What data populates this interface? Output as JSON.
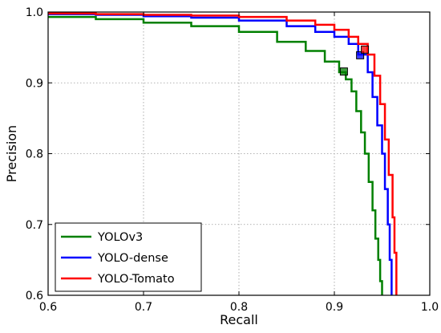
{
  "chart_data": {
    "type": "line",
    "title": "",
    "xlabel": "Recall",
    "ylabel": "Precision",
    "xlim": [
      0.6,
      1.0
    ],
    "ylim": [
      0.6,
      1.0
    ],
    "xticks": [
      "0.6",
      "0.7",
      "0.8",
      "0.9",
      "1.0"
    ],
    "yticks": [
      "0.6",
      "0.7",
      "0.8",
      "0.9",
      "1.0"
    ],
    "grid": true,
    "legend_position": "bottom-left",
    "series": [
      {
        "name": "YOLOv3",
        "color": "#008000",
        "x": [
          0.6,
          0.65,
          0.7,
          0.75,
          0.8,
          0.84,
          0.87,
          0.89,
          0.905,
          0.912,
          0.918,
          0.923,
          0.928,
          0.932,
          0.936,
          0.94,
          0.943,
          0.946,
          0.948,
          0.95
        ],
        "y": [
          0.993,
          0.99,
          0.985,
          0.98,
          0.972,
          0.958,
          0.945,
          0.93,
          0.915,
          0.905,
          0.888,
          0.86,
          0.83,
          0.8,
          0.76,
          0.72,
          0.68,
          0.65,
          0.62,
          0.6
        ],
        "marker": {
          "x": 0.91,
          "y": 0.916
        }
      },
      {
        "name": "YOLO-dense",
        "color": "#0000ff",
        "x": [
          0.6,
          0.65,
          0.7,
          0.75,
          0.8,
          0.85,
          0.88,
          0.9,
          0.915,
          0.925,
          0.935,
          0.94,
          0.945,
          0.95,
          0.953,
          0.956,
          0.958,
          0.96
        ],
        "y": [
          0.997,
          0.996,
          0.994,
          0.992,
          0.988,
          0.98,
          0.972,
          0.965,
          0.955,
          0.94,
          0.915,
          0.88,
          0.84,
          0.8,
          0.75,
          0.7,
          0.65,
          0.6
        ],
        "marker": {
          "x": 0.927,
          "y": 0.939
        }
      },
      {
        "name": "YOLO-Tomato",
        "color": "#ff0000",
        "x": [
          0.6,
          0.65,
          0.7,
          0.75,
          0.8,
          0.85,
          0.88,
          0.9,
          0.915,
          0.925,
          0.935,
          0.942,
          0.948,
          0.953,
          0.957,
          0.961,
          0.963,
          0.965
        ],
        "y": [
          0.998,
          0.997,
          0.996,
          0.995,
          0.993,
          0.988,
          0.982,
          0.975,
          0.965,
          0.955,
          0.94,
          0.91,
          0.87,
          0.82,
          0.77,
          0.71,
          0.66,
          0.6
        ],
        "marker": {
          "x": 0.932,
          "y": 0.947
        }
      }
    ]
  }
}
